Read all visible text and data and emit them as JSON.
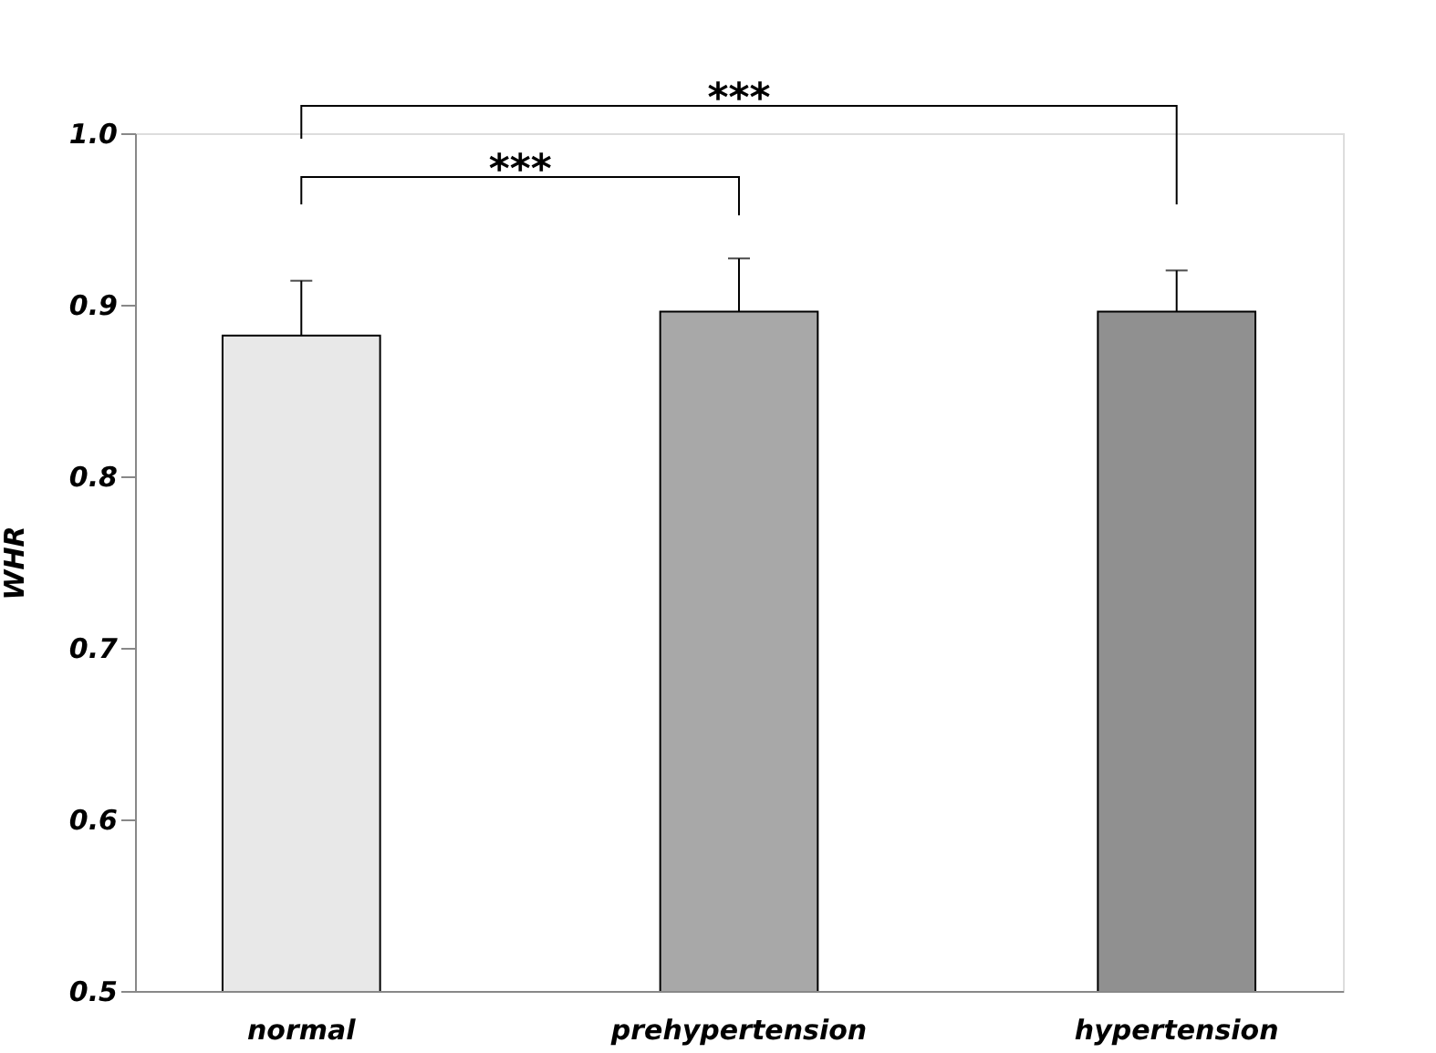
{
  "chart_data": {
    "type": "bar",
    "ylabel": "WHR",
    "categories": [
      "normal",
      "prehypertension",
      "hypertension"
    ],
    "values": [
      0.882,
      0.896,
      0.896
    ],
    "errors": [
      [
        0.882,
        0.914
      ],
      [
        0.896,
        0.927
      ],
      [
        0.896,
        0.92
      ]
    ],
    "colors": [
      "#e8e8e8",
      "#a8a8a8",
      "#909090"
    ],
    "ylim": [
      0.5,
      1.0
    ],
    "yticks": [
      0.5,
      0.6,
      0.7,
      0.8,
      0.9,
      {
        "value": 1.0,
        "label": "1.0"
      }
    ],
    "grid": false,
    "annotations": [
      "***",
      "***"
    ]
  }
}
